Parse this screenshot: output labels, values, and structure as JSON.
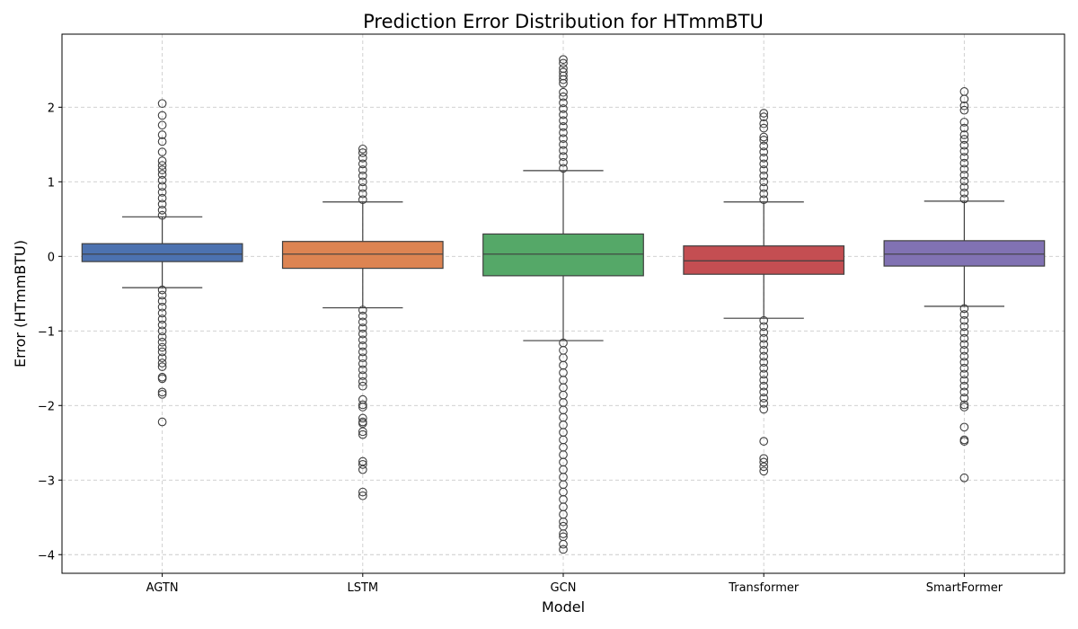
{
  "chart_data": {
    "type": "box",
    "title": "Prediction Error Distribution for HTmmBTU",
    "xlabel": "Model",
    "ylabel": "Error (HTmmBTU)",
    "ylim": [
      -4.25,
      2.98
    ],
    "yticks": [
      2,
      1,
      0,
      -1,
      -2,
      -3,
      -4
    ],
    "ytick_labels": [
      "2",
      "1",
      "0",
      "−1",
      "−2",
      "−3",
      "−4"
    ],
    "grid": true,
    "series": [
      {
        "category": "AGTN",
        "color": "#4c72b0",
        "q1": -0.07,
        "median": 0.03,
        "q3": 0.17,
        "whisker_low": -0.42,
        "whisker_high": 0.53,
        "outliers_high": [
          0.55,
          0.62,
          0.7,
          0.78,
          0.86,
          0.94,
          1.02,
          1.1,
          1.16,
          1.22,
          1.28,
          1.4,
          1.54,
          1.63,
          1.76,
          1.89,
          2.05
        ],
        "outliers_low": [
          -0.45,
          -0.52,
          -0.6,
          -0.68,
          -0.76,
          -0.84,
          -0.92,
          -1.0,
          -1.08,
          -1.15,
          -1.22,
          -1.28,
          -1.36,
          -1.43,
          -1.48,
          -1.62,
          -1.64,
          -1.82,
          -1.85,
          -2.22
        ]
      },
      {
        "category": "LSTM",
        "color": "#dd8452",
        "q1": -0.16,
        "median": 0.03,
        "q3": 0.2,
        "whisker_low": -0.69,
        "whisker_high": 0.73,
        "outliers_high": [
          0.76,
          0.84,
          0.92,
          1.0,
          1.08,
          1.16,
          1.24,
          1.32,
          1.39,
          1.44
        ],
        "outliers_low": [
          -0.72,
          -0.8,
          -0.88,
          -0.96,
          -1.04,
          -1.12,
          -1.2,
          -1.28,
          -1.36,
          -1.44,
          -1.52,
          -1.6,
          -1.68,
          -1.74,
          -1.92,
          -1.99,
          -2.02,
          -2.17,
          -2.22,
          -2.24,
          -2.35,
          -2.39,
          -2.75,
          -2.79,
          -2.86,
          -3.16,
          -3.21
        ]
      },
      {
        "category": "GCN",
        "color": "#55a868",
        "q1": -0.26,
        "median": 0.03,
        "q3": 0.3,
        "whisker_low": -1.13,
        "whisker_high": 1.15,
        "outliers_high": [
          1.18,
          1.26,
          1.34,
          1.42,
          1.5,
          1.58,
          1.66,
          1.74,
          1.82,
          1.9,
          1.98,
          2.06,
          2.14,
          2.2,
          2.32,
          2.37,
          2.42,
          2.47,
          2.52,
          2.59,
          2.64
        ],
        "outliers_low": [
          -1.16,
          -1.26,
          -1.36,
          -1.46,
          -1.56,
          -1.66,
          -1.76,
          -1.86,
          -1.96,
          -2.06,
          -2.16,
          -2.26,
          -2.36,
          -2.46,
          -2.56,
          -2.66,
          -2.76,
          -2.86,
          -2.96,
          -3.06,
          -3.16,
          -3.26,
          -3.36,
          -3.46,
          -3.56,
          -3.62,
          -3.72,
          -3.76,
          -3.86,
          -3.93
        ]
      },
      {
        "category": "Transformer",
        "color": "#c44e52",
        "q1": -0.24,
        "median": -0.06,
        "q3": 0.14,
        "whisker_low": -0.83,
        "whisker_high": 0.73,
        "outliers_high": [
          0.76,
          0.84,
          0.92,
          1.0,
          1.08,
          1.16,
          1.24,
          1.32,
          1.4,
          1.48,
          1.56,
          1.6,
          1.72,
          1.78,
          1.87,
          1.92
        ],
        "outliers_low": [
          -0.86,
          -0.94,
          -1.02,
          -1.1,
          -1.18,
          -1.26,
          -1.34,
          -1.42,
          -1.5,
          -1.58,
          -1.66,
          -1.74,
          -1.82,
          -1.9,
          -1.97,
          -2.05,
          -2.48,
          -2.71,
          -2.76,
          -2.82,
          -2.88
        ]
      },
      {
        "category": "SmartFormer",
        "color": "#8172b3",
        "q1": -0.13,
        "median": 0.03,
        "q3": 0.21,
        "whisker_low": -0.67,
        "whisker_high": 0.74,
        "outliers_high": [
          0.77,
          0.85,
          0.93,
          1.01,
          1.09,
          1.17,
          1.25,
          1.33,
          1.41,
          1.49,
          1.57,
          1.63,
          1.72,
          1.8,
          1.96,
          2.02,
          2.11,
          2.21
        ],
        "outliers_low": [
          -0.7,
          -0.78,
          -0.86,
          -0.94,
          -1.02,
          -1.1,
          -1.18,
          -1.26,
          -1.34,
          -1.42,
          -1.5,
          -1.58,
          -1.66,
          -1.74,
          -1.82,
          -1.9,
          -1.99,
          -2.02,
          -2.29,
          -2.46,
          -2.48,
          -2.97
        ]
      }
    ]
  }
}
